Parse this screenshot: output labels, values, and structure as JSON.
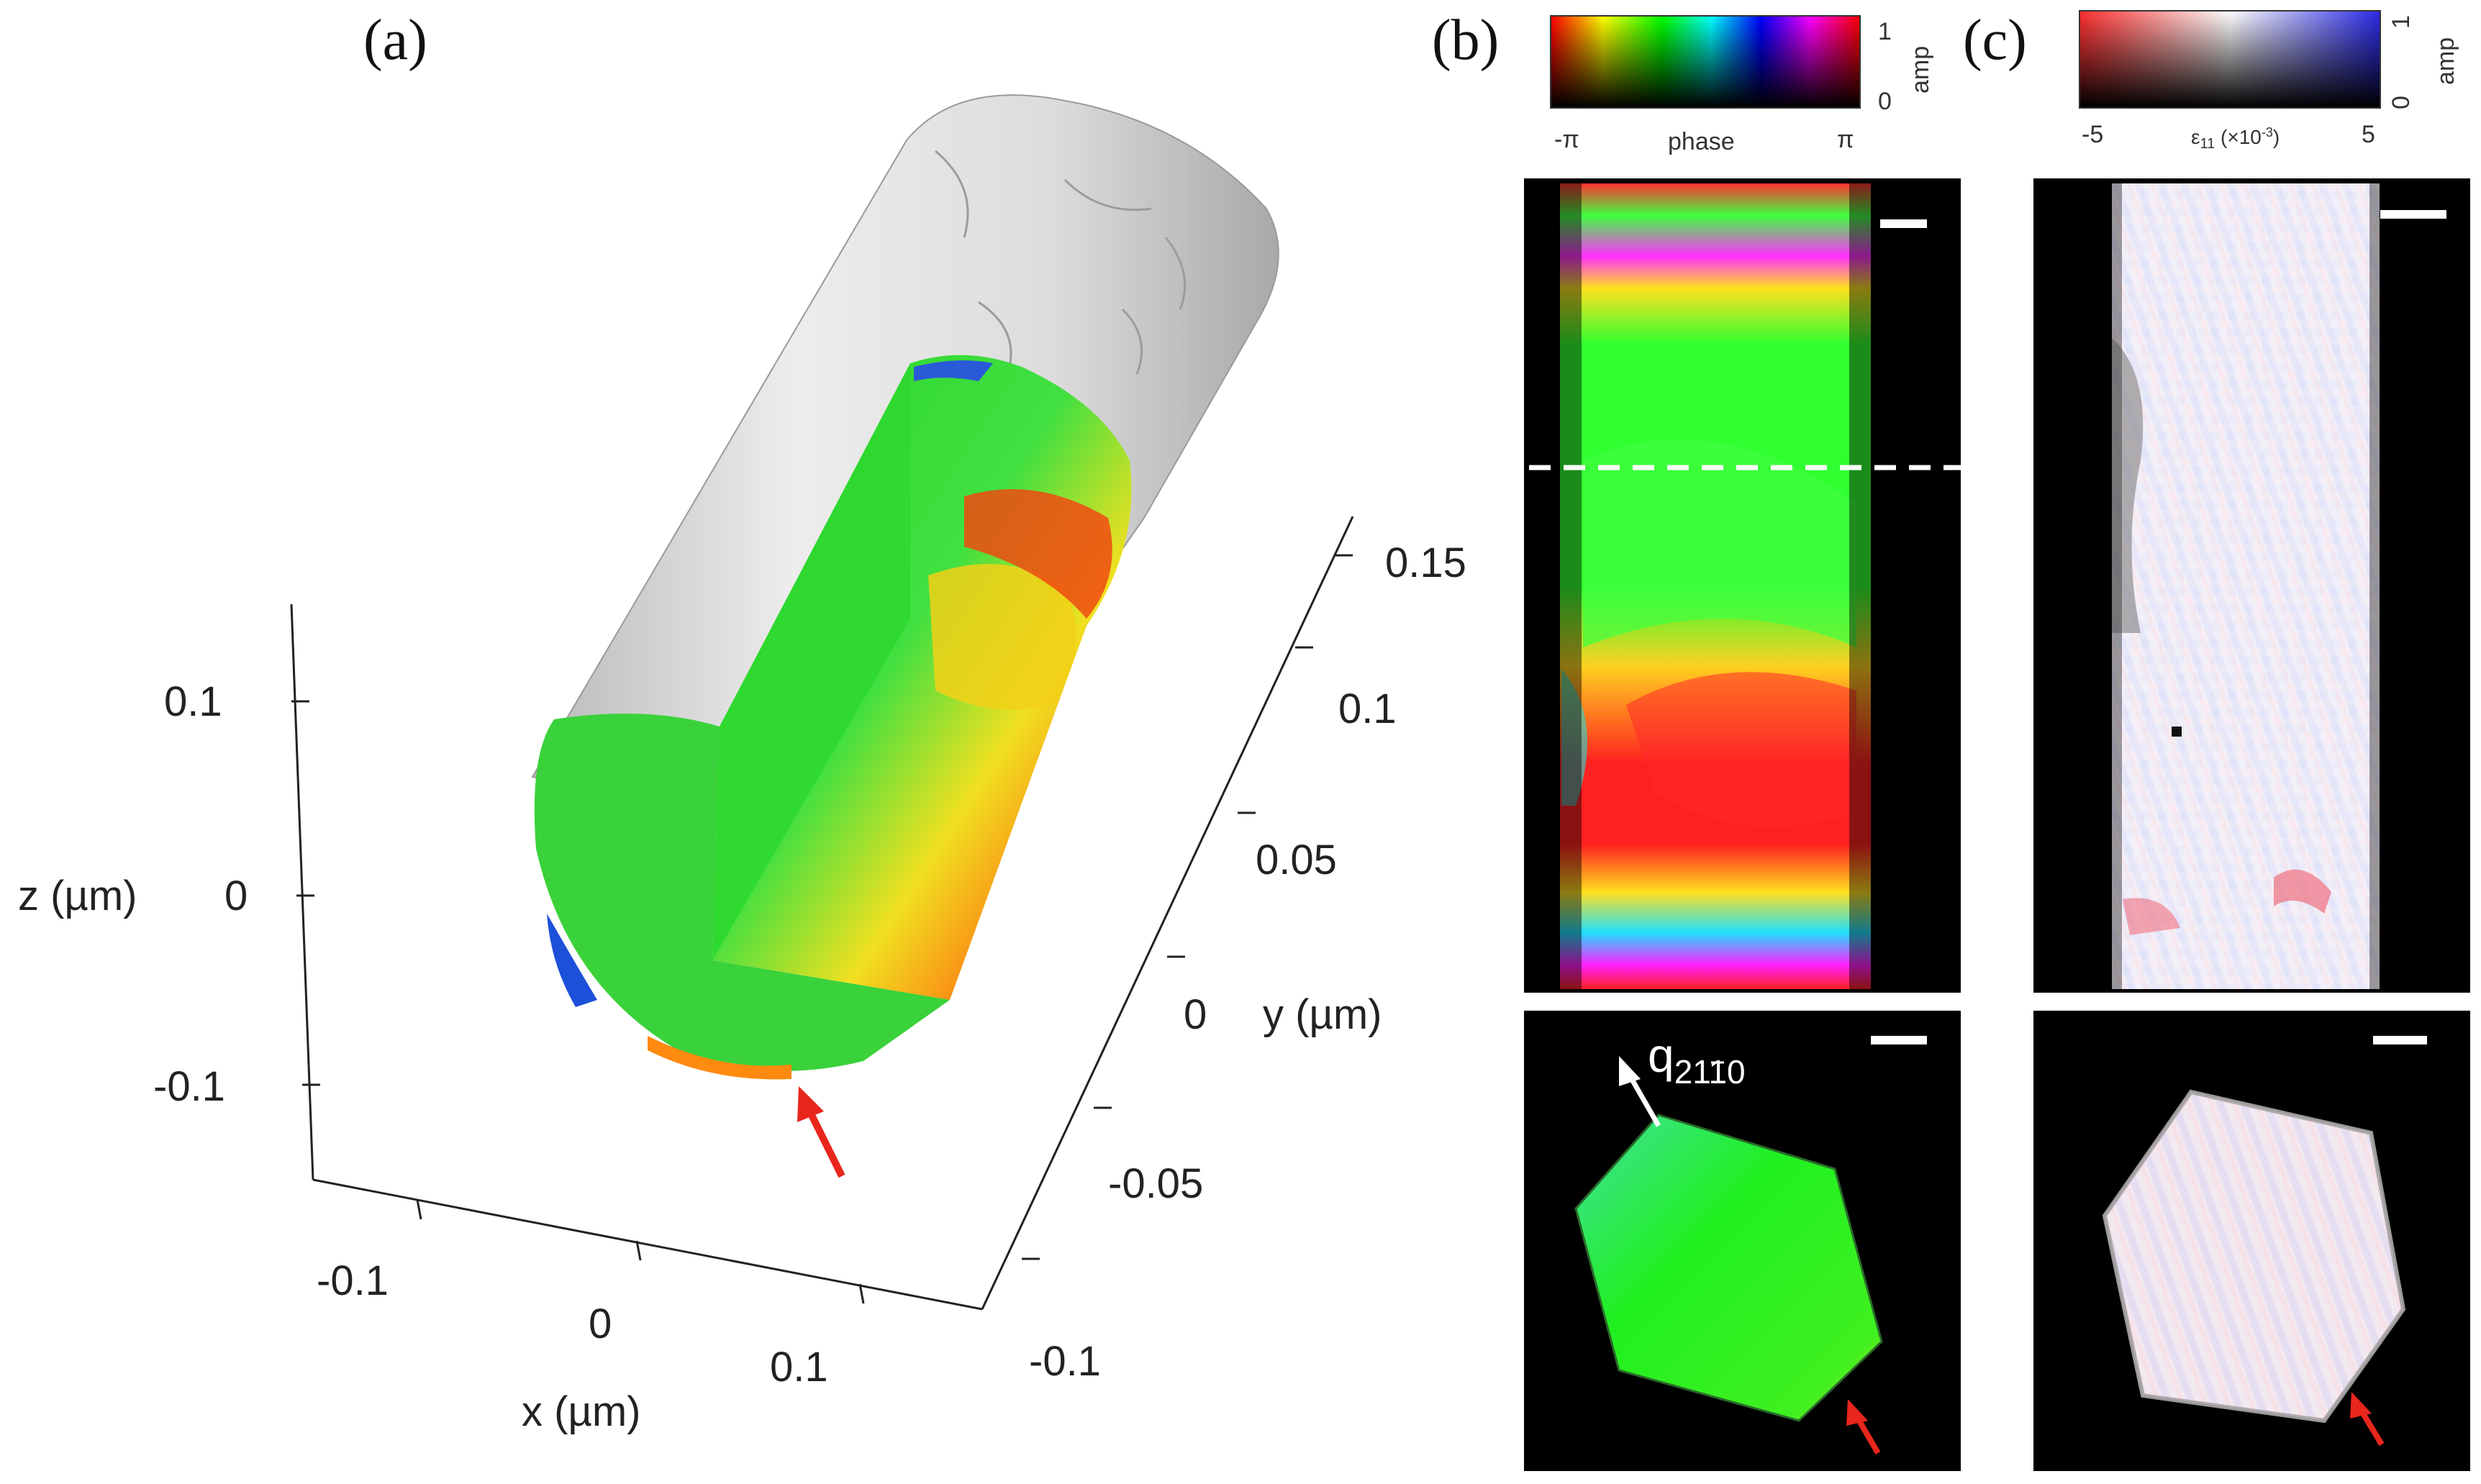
{
  "panels": {
    "a": {
      "label": "(a)",
      "axes": {
        "z": {
          "label": "z (µm)",
          "ticks": [
            "0.1",
            "0",
            "-0.1"
          ]
        },
        "x": {
          "label": "x (µm)",
          "ticks": [
            "-0.1",
            "0",
            "0.1"
          ]
        },
        "y": {
          "label": "y (µm)",
          "ticks": [
            "0.15",
            "0.1",
            "0.05",
            "0",
            "-0.05",
            "-0.1"
          ]
        }
      }
    },
    "b": {
      "label": "(b)",
      "colorbar": {
        "min": "-π",
        "mid": "phase",
        "max": "π",
        "amp_top": "1",
        "amp_bottom": "0",
        "amp_label": "amp"
      },
      "annotation": {
        "q_base": "q",
        "q_index": "2110"
      }
    },
    "c": {
      "label": "(c)",
      "colorbar": {
        "min": "-5",
        "mid": "ε",
        "mid_sub": "11",
        "mid_suffix": " (×10",
        "mid_exp": "-3",
        "mid_close": ")",
        "max": "5",
        "amp_top": "1",
        "amp_bottom": "0",
        "amp_label": "amp"
      }
    }
  },
  "colors": {
    "nanowire_surface": "#d6d6d6",
    "phase_green": "#22e022",
    "arrow_red": "#e8261c",
    "image_background": "#000000"
  }
}
